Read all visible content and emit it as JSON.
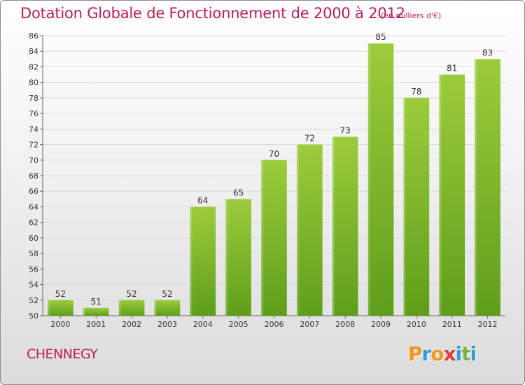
{
  "title": "Dotation Globale de Fonctionnement de 2000 à 2012",
  "unit_note": "(en milliers d'€)",
  "place_name": "CHENNEGY",
  "logo": {
    "text": "Proxiti",
    "letters": [
      "P",
      "r",
      "o",
      "x",
      "i",
      "t",
      "i"
    ],
    "colors": [
      "#f7941d",
      "#2e9fd8",
      "#f7941d",
      "#e53935",
      "#2e9fd8",
      "#7cb342",
      "#2e9fd8"
    ]
  },
  "colors": {
    "bar_light": "#9ccc3c",
    "bar_dark": "#5f9e1a",
    "title": "#c2185b"
  },
  "chart_data": {
    "type": "bar",
    "categories": [
      "2000",
      "2001",
      "2002",
      "2003",
      "2004",
      "2005",
      "2006",
      "2007",
      "2008",
      "2009",
      "2010",
      "2011",
      "2012"
    ],
    "values": [
      52,
      51,
      52,
      52,
      64,
      65,
      70,
      72,
      73,
      85,
      78,
      81,
      83
    ],
    "ylim": [
      50,
      86
    ],
    "yticks": [
      50,
      52,
      54,
      56,
      58,
      60,
      62,
      64,
      66,
      68,
      70,
      72,
      74,
      76,
      78,
      80,
      82,
      84,
      86
    ],
    "grid": true
  }
}
